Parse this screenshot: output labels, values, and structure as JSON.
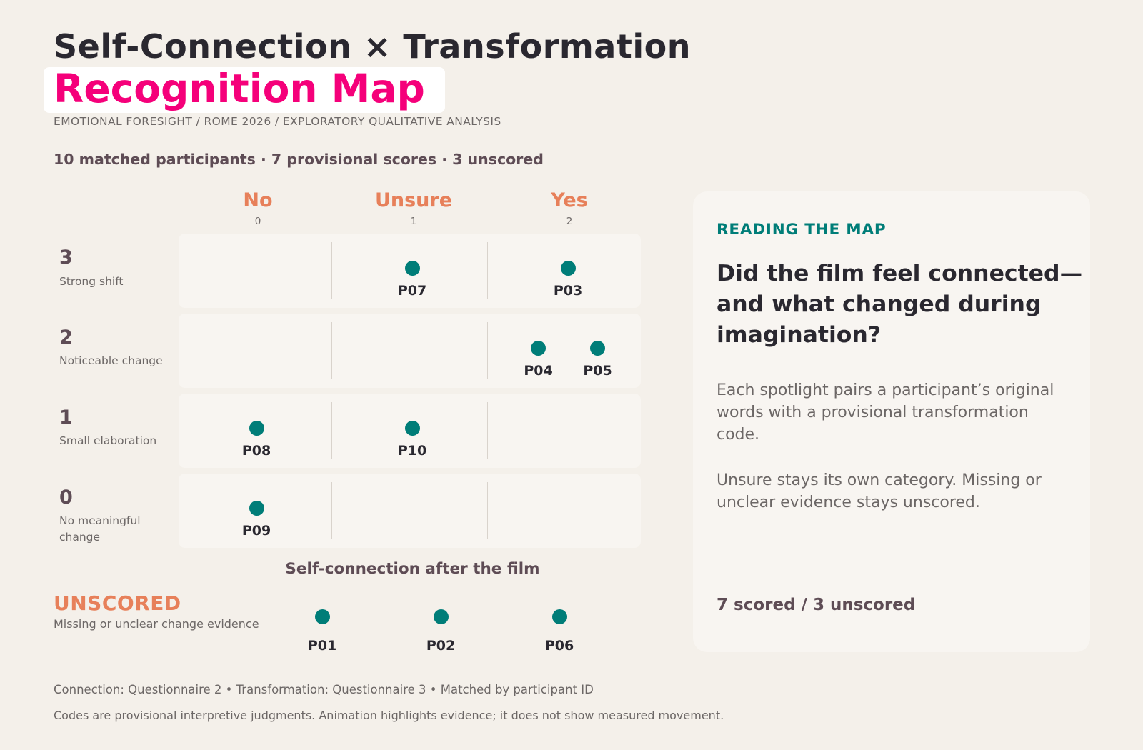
{
  "header": {
    "title_line1": "Self-Connection × Transformation",
    "title_line2": "Recognition Map",
    "subtitle": "EMOTIONAL FORESIGHT  /  ROME 2026  /  EXPLORATORY QUALITATIVE ANALYSIS",
    "summary": "10 matched participants · 7 provisional scores · 3 unscored"
  },
  "colors": {
    "background": "#f4f0ea",
    "accent_pink": "#f5007a",
    "accent_orange": "#e7805a",
    "dot_teal": "#007d78",
    "heading_plum": "#5e4c55"
  },
  "chart_data": {
    "type": "scatter",
    "title": "Recognition Map",
    "xlabel": "Self-connection after the film",
    "x_categories": [
      {
        "label": "No",
        "value": "0"
      },
      {
        "label": "Unsure",
        "value": "1"
      },
      {
        "label": "Yes",
        "value": "2"
      }
    ],
    "y_categories": [
      {
        "value": "3",
        "label": "Strong shift"
      },
      {
        "value": "2",
        "label": "Noticeable change"
      },
      {
        "value": "1",
        "label": "Small elaboration"
      },
      {
        "value": "0",
        "label": "No meaningful change"
      }
    ],
    "points": [
      {
        "id": "P07",
        "x": 1,
        "y": 3
      },
      {
        "id": "P03",
        "x": 2,
        "y": 3
      },
      {
        "id": "P04",
        "x": 2,
        "y": 2
      },
      {
        "id": "P05",
        "x": 2,
        "y": 2
      },
      {
        "id": "P08",
        "x": 0,
        "y": 1
      },
      {
        "id": "P10",
        "x": 1,
        "y": 1
      },
      {
        "id": "P09",
        "x": 0,
        "y": 0
      }
    ],
    "unscored": {
      "title": "UNSCORED",
      "subtitle": "Missing or unclear change evidence",
      "ids": [
        "P01",
        "P02",
        "P06"
      ]
    }
  },
  "panel": {
    "kicker": "READING THE MAP",
    "question": "Did the film feel connected—and what changed during imagination?",
    "para1": "Each spotlight pairs a participant’s original words with a provisional transformation code.",
    "para2": "Unsure stays its own category. Missing or unclear evidence stays unscored.",
    "footer": "7 scored / 3 unscored"
  },
  "footer": {
    "line1": "Connection: Questionnaire 2  •  Transformation: Questionnaire 3  •  Matched by participant ID",
    "line2": "Codes are provisional interpretive judgments. Animation highlights evidence; it does not show measured movement."
  }
}
